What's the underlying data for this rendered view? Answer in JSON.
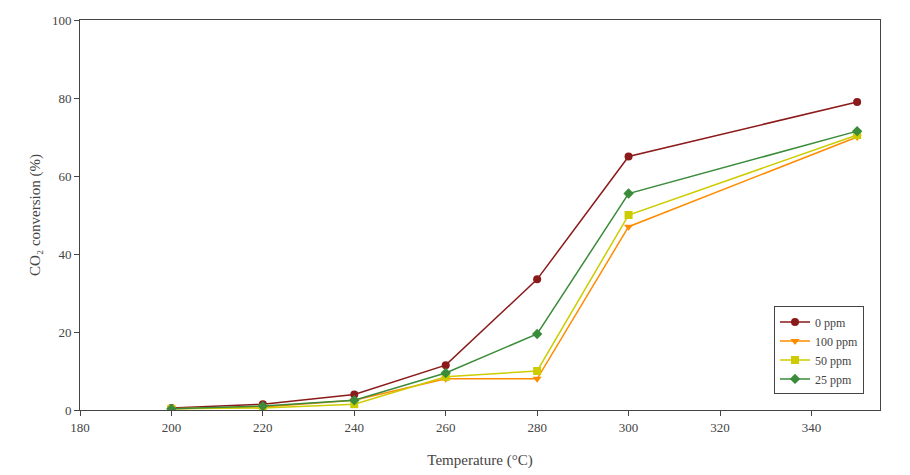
{
  "chart_data": {
    "type": "line",
    "xlabel": "Temperature (°C)",
    "ylabel": "CO₂ conversion (%)",
    "x": [
      200,
      220,
      240,
      260,
      280,
      300,
      350
    ],
    "series": [
      {
        "name": "0 ppm",
        "color": "#8B1A1A",
        "marker": "circle",
        "values": [
          0.5,
          1.5,
          4.0,
          11.5,
          33.5,
          65.0,
          79.0
        ]
      },
      {
        "name": "100 ppm",
        "color": "#FF8C00",
        "marker": "triangle-down",
        "values": [
          0.3,
          0.8,
          2.5,
          8.0,
          8.0,
          47.0,
          70.0
        ]
      },
      {
        "name": "50 ppm",
        "color": "#CCCC00",
        "marker": "square",
        "values": [
          0.3,
          0.5,
          1.5,
          8.5,
          10.0,
          50.0,
          70.5
        ]
      },
      {
        "name": "25 ppm",
        "color": "#3A8B3A",
        "marker": "diamond",
        "values": [
          0.3,
          1.0,
          2.5,
          9.5,
          19.5,
          55.5,
          71.5
        ]
      }
    ],
    "xlim": [
      180,
      355
    ],
    "ylim": [
      0,
      100
    ],
    "xticks": [
      180,
      200,
      220,
      240,
      260,
      280,
      300,
      320,
      340
    ],
    "yticks": [
      0,
      20,
      40,
      60,
      80,
      100
    ],
    "grid": false,
    "legend": "lower right"
  }
}
